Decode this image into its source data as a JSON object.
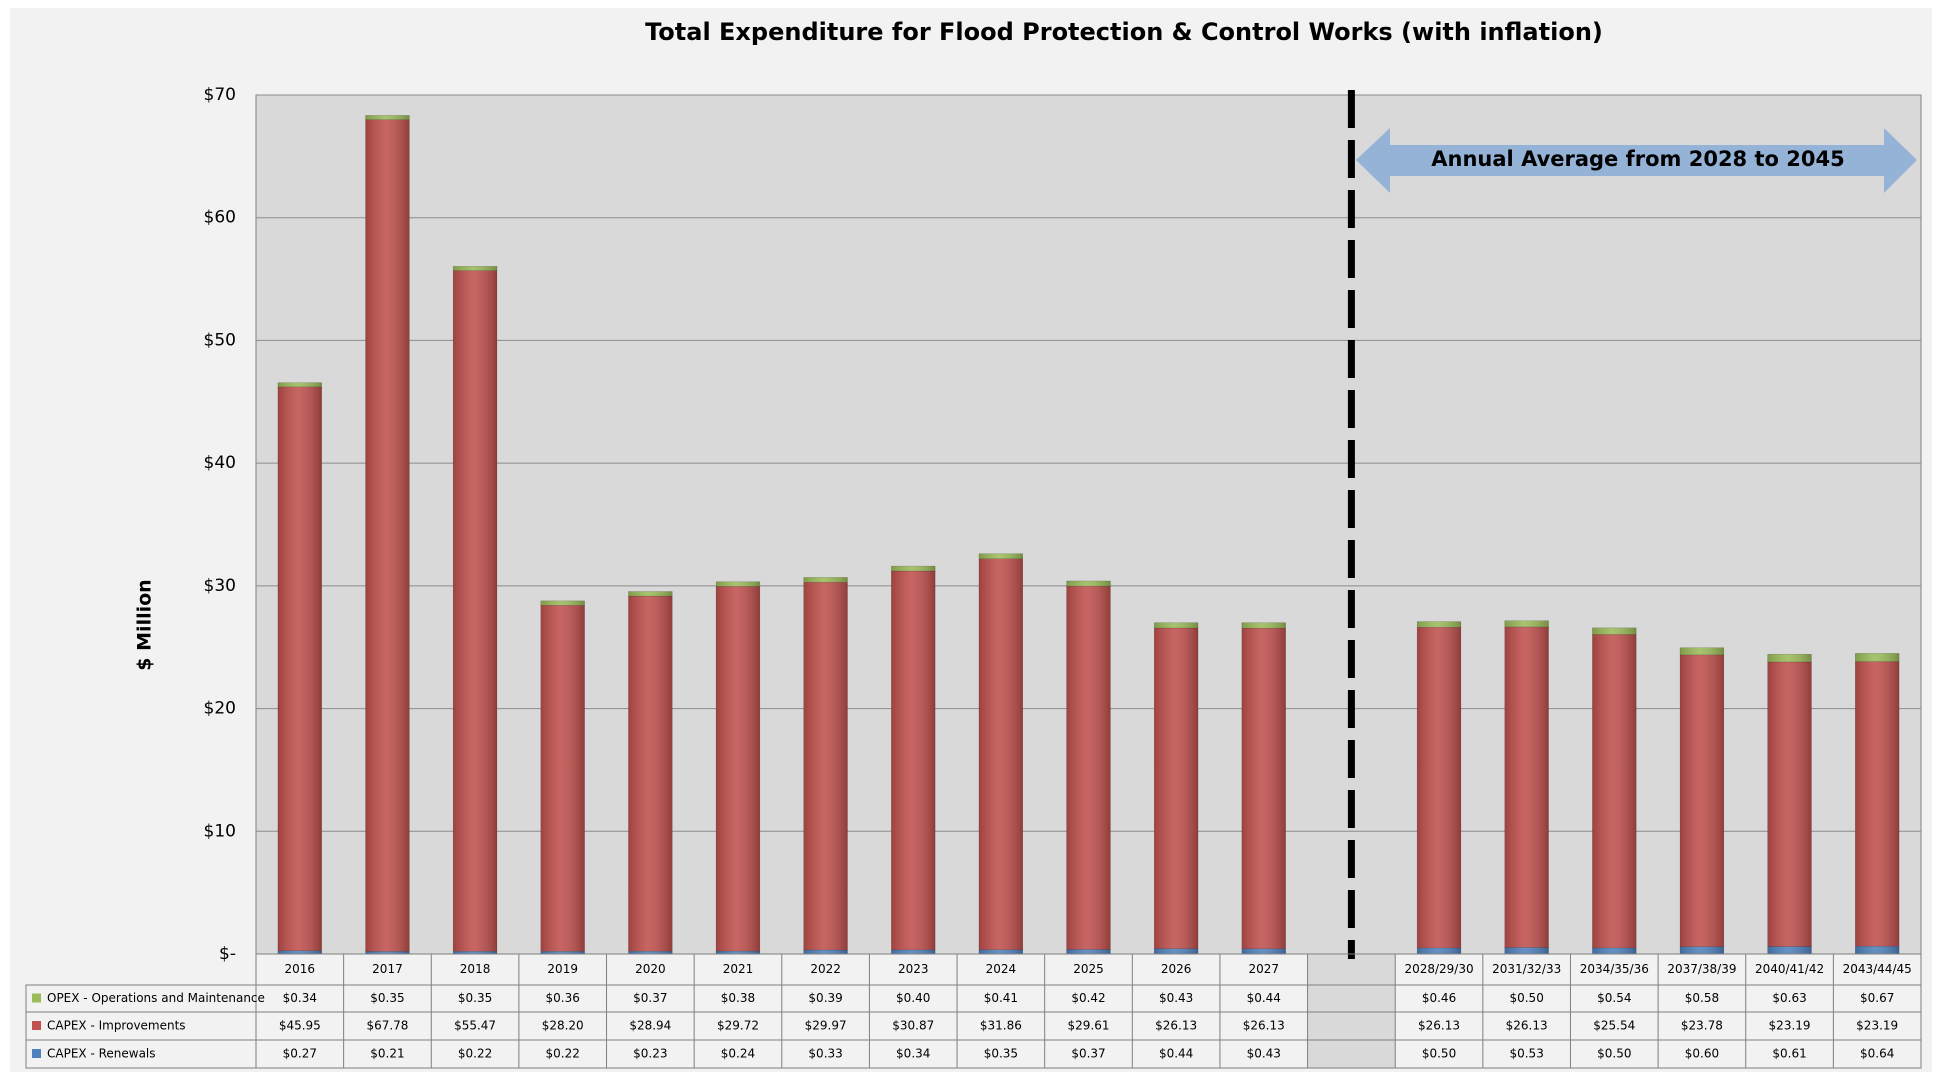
{
  "chart_data": {
    "type": "bar",
    "stacked": true,
    "title": "Total Expenditure for Flood Protection & Control Works (with inflation)",
    "y_label": "$ Million",
    "annotation": "Annual Average from 2028 to 2045",
    "categories": [
      "2016",
      "2017",
      "2018",
      "2019",
      "2020",
      "2021",
      "2022",
      "2023",
      "2024",
      "2025",
      "2026",
      "2027",
      null,
      "2028/29/30",
      "2031/32/33",
      "2034/35/36",
      "2037/38/39",
      "2040/41/42",
      "2043/44/45"
    ],
    "series": [
      {
        "name": "OPEX - Operations and Maintenance",
        "color": "#9bbb59",
        "values": [
          0.34,
          0.35,
          0.35,
          0.36,
          0.37,
          0.38,
          0.39,
          0.4,
          0.41,
          0.42,
          0.43,
          0.44,
          null,
          0.46,
          0.5,
          0.54,
          0.58,
          0.63,
          0.67
        ],
        "value_labels": [
          "$0.34",
          "$0.35",
          "$0.35",
          "$0.36",
          "$0.37",
          "$0.38",
          "$0.39",
          "$0.40",
          "$0.41",
          "$0.42",
          "$0.43",
          "$0.44",
          null,
          "$0.46",
          "$0.50",
          "$0.54",
          "$0.58",
          "$0.63",
          "$0.67"
        ]
      },
      {
        "name": "CAPEX - Improvements",
        "color": "#c0504d",
        "values": [
          45.95,
          67.78,
          55.47,
          28.2,
          28.94,
          29.72,
          29.97,
          30.87,
          31.86,
          29.61,
          26.13,
          26.13,
          null,
          26.13,
          26.13,
          25.54,
          23.78,
          23.19,
          23.19
        ],
        "value_labels": [
          "$45.95",
          "$67.78",
          "$55.47",
          "$28.20",
          "$28.94",
          "$29.72",
          "$29.97",
          "$30.87",
          "$31.86",
          "$29.61",
          "$26.13",
          "$26.13",
          null,
          "$26.13",
          "$26.13",
          "$25.54",
          "$23.78",
          "$23.19",
          "$23.19"
        ]
      },
      {
        "name": "CAPEX - Renewals",
        "color": "#4f81bd",
        "values": [
          0.27,
          0.21,
          0.22,
          0.22,
          0.23,
          0.24,
          0.33,
          0.34,
          0.35,
          0.37,
          0.44,
          0.43,
          null,
          0.5,
          0.53,
          0.5,
          0.6,
          0.61,
          0.64
        ],
        "value_labels": [
          "$0.27",
          "$0.21",
          "$0.22",
          "$0.22",
          "$0.23",
          "$0.24",
          "$0.33",
          "$0.34",
          "$0.35",
          "$0.37",
          "$0.44",
          "$0.43",
          null,
          "$0.50",
          "$0.53",
          "$0.50",
          "$0.60",
          "$0.61",
          "$0.64"
        ]
      }
    ],
    "ylim": [
      0,
      70
    ],
    "yticks": [
      {
        "value": 0,
        "label": "$-"
      },
      {
        "value": 10,
        "label": "$10"
      },
      {
        "value": 20,
        "label": "$20"
      },
      {
        "value": 30,
        "label": "$30"
      },
      {
        "value": 40,
        "label": "$40"
      },
      {
        "value": 50,
        "label": "$50"
      },
      {
        "value": 60,
        "label": "$60"
      },
      {
        "value": 70,
        "label": "$70"
      }
    ],
    "grid": true
  }
}
